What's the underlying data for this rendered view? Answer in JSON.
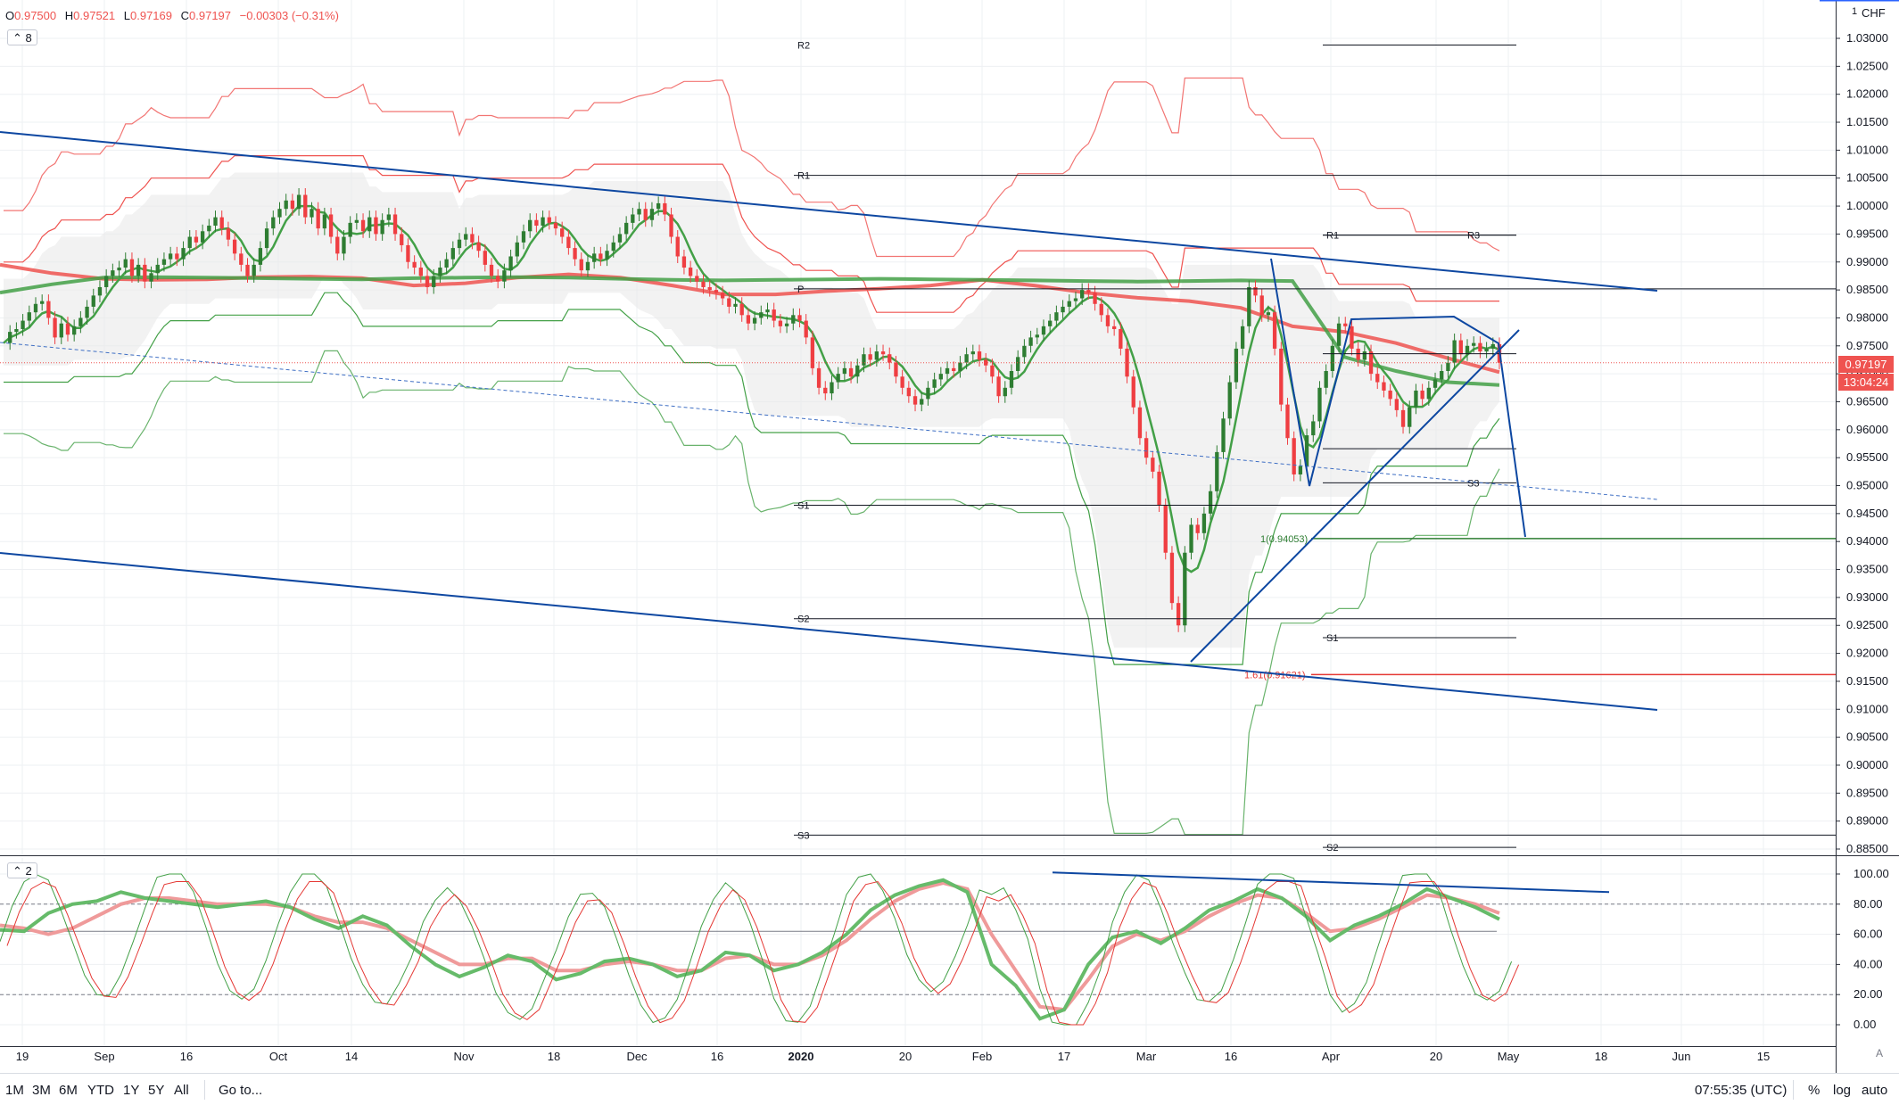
{
  "legend": {
    "open_label": "O",
    "open": "0.97500",
    "high_label": "H",
    "high": "0.97521",
    "low_label": "L",
    "low": "0.97169",
    "close_label": "C",
    "close": "0.97197",
    "change": "−0.00303 (−0.31%)",
    "main_indicators_count": "8",
    "sub_indicators_count": "2"
  },
  "currency": "CHF",
  "log_flag": "1",
  "last_price": "0.97197",
  "countdown": "13:04:24",
  "bottom_bar": {
    "ranges": [
      "1M",
      "3M",
      "6M",
      "YTD",
      "1Y",
      "5Y",
      "All"
    ],
    "goto": "Go to...",
    "clock": "07:55:35 (UTC)",
    "right_buttons": [
      "%",
      "log",
      "auto"
    ]
  },
  "colors": {
    "up": "#2e7d32",
    "down": "#ef3e42",
    "trend_blue": "#0d47a1",
    "band_red": "#ef5350",
    "band_green": "#43a047",
    "fib_red": "#e53935",
    "fib_green": "#2e7d32",
    "stoch_green": "#66bb6a",
    "stoch_red": "#ef9a9a"
  },
  "chart_data": {
    "type": "candlestick",
    "x_ticks": [
      "19",
      "Sep",
      "16",
      "Oct",
      "14",
      "Nov",
      "18",
      "Dec",
      "16",
      "2020",
      "20",
      "Feb",
      "17",
      "Mar",
      "16",
      "Apr",
      "20",
      "May",
      "18",
      "Jun",
      "15"
    ],
    "y_ticks": [
      "1.03000",
      "1.02500",
      "1.02000",
      "1.01500",
      "1.01000",
      "1.00500",
      "1.00000",
      "0.99500",
      "0.99000",
      "0.98500",
      "0.98000",
      "0.97500",
      "0.97000",
      "0.96500",
      "0.96000",
      "0.95500",
      "0.95000",
      "0.94500",
      "0.94000",
      "0.93500",
      "0.93000",
      "0.92500",
      "0.92000",
      "0.91500",
      "0.91000",
      "0.90500",
      "0.90000",
      "0.89500",
      "0.89000",
      "0.88500"
    ],
    "ylim": [
      0.8836,
      1.0355
    ],
    "pivot_levels": [
      {
        "label": "R2",
        "value": 1.0288
      },
      {
        "label": "R1",
        "value": 1.0055
      },
      {
        "label": "P",
        "value": 0.9852
      },
      {
        "label": "S1",
        "value": 0.9465
      },
      {
        "label": "S2",
        "value": 0.9262
      },
      {
        "label": "S3",
        "value": 0.8875
      },
      {
        "label": "R1",
        "value": 0.9948
      },
      {
        "label": "R3",
        "value": 0.9948
      },
      {
        "label": "",
        "value": 0.9736
      },
      {
        "label": "",
        "value": 0.9566
      },
      {
        "label": "S3",
        "value": 0.9505
      },
      {
        "label": "S1",
        "value": 0.9228
      },
      {
        "label": "S2",
        "value": 0.8853
      }
    ],
    "fib_levels": [
      {
        "label": "1(0.94053)",
        "value": 0.94053
      },
      {
        "label": "1.61(0.91621)",
        "value": 0.91621
      }
    ],
    "closes": [
      0.9755,
      0.9775,
      0.978,
      0.9795,
      0.981,
      0.9825,
      0.983,
      0.98,
      0.9765,
      0.979,
      0.977,
      0.9785,
      0.98,
      0.982,
      0.984,
      0.9855,
      0.9875,
      0.9885,
      0.989,
      0.9905,
      0.9875,
      0.9895,
      0.9865,
      0.988,
      0.9895,
      0.9905,
      0.9915,
      0.9905,
      0.9925,
      0.9945,
      0.9935,
      0.9955,
      0.9965,
      0.998,
      0.996,
      0.994,
      0.9915,
      0.9895,
      0.9875,
      0.9895,
      0.9925,
      0.996,
      0.998,
      0.9995,
      1.001,
      0.9995,
      1.002,
      0.998,
      0.9995,
      0.996,
      0.9985,
      0.9945,
      0.9915,
      0.9945,
      0.997,
      0.9975,
      0.9955,
      0.998,
      0.995,
      0.9975,
      0.9985,
      0.995,
      0.993,
      0.99,
      0.989,
      0.9875,
      0.9855,
      0.9875,
      0.989,
      0.9905,
      0.9925,
      0.994,
      0.995,
      0.9935,
      0.992,
      0.9895,
      0.9875,
      0.9865,
      0.9885,
      0.991,
      0.9935,
      0.9955,
      0.9975,
      0.9965,
      0.998,
      0.997,
      0.996,
      0.9945,
      0.9925,
      0.9905,
      0.9885,
      0.99,
      0.9915,
      0.9905,
      0.992,
      0.9935,
      0.995,
      0.997,
      0.9985,
      0.9995,
      0.9975,
      0.9995,
      1.0005,
      0.9985,
      0.9945,
      0.991,
      0.989,
      0.9875,
      0.9865,
      0.9855,
      0.985,
      0.9845,
      0.9835,
      0.982,
      0.9825,
      0.9805,
      0.979,
      0.98,
      0.981,
      0.9815,
      0.9795,
      0.9785,
      0.979,
      0.9805,
      0.9795,
      0.9765,
      0.971,
      0.9675,
      0.9665,
      0.9685,
      0.97,
      0.971,
      0.9695,
      0.9715,
      0.9735,
      0.9725,
      0.974,
      0.9735,
      0.972,
      0.9695,
      0.9675,
      0.966,
      0.9645,
      0.9655,
      0.9675,
      0.969,
      0.97,
      0.971,
      0.9705,
      0.972,
      0.9735,
      0.974,
      0.9725,
      0.9715,
      0.9695,
      0.966,
      0.9675,
      0.9705,
      0.973,
      0.975,
      0.9765,
      0.977,
      0.9785,
      0.9795,
      0.981,
      0.982,
      0.983,
      0.9835,
      0.985,
      0.9845,
      0.9825,
      0.9805,
      0.9785,
      0.978,
      0.9745,
      0.9695,
      0.964,
      0.9585,
      0.955,
      0.9525,
      0.9465,
      0.938,
      0.929,
      0.925,
      0.938,
      0.943,
      0.9415,
      0.945,
      0.949,
      0.956,
      0.962,
      0.9685,
      0.9745,
      0.9785,
      0.9855,
      0.984,
      0.9805,
      0.981,
      0.9745,
      0.9645,
      0.9585,
      0.952,
      0.9535,
      0.959,
      0.9615,
      0.9675,
      0.9705,
      0.975,
      0.979,
      0.9785,
      0.9745,
      0.9725,
      0.974,
      0.97,
      0.9685,
      0.967,
      0.9655,
      0.9635,
      0.9605,
      0.964,
      0.967,
      0.9655,
      0.9675,
      0.969,
      0.9705,
      0.972,
      0.976,
      0.9735,
      0.975,
      0.9755,
      0.974,
      0.9745,
      0.9753,
      0.97197
    ],
    "series": [
      {
        "name": "",
        "type": "sma_red",
        "values": [
          0.9895,
          0.988,
          0.987,
          0.9868,
          0.9869,
          0.9873,
          0.9874,
          0.9871,
          0.9858,
          0.9862,
          0.9872,
          0.9878,
          0.9872,
          0.9858,
          0.9842,
          0.9842,
          0.9848,
          0.9852,
          0.9858,
          0.9868,
          0.9858,
          0.9845,
          0.9836,
          0.983,
          0.9818,
          0.9785,
          0.9775,
          0.9755,
          0.9728,
          0.9703
        ]
      },
      {
        "name": "",
        "type": "sma_green",
        "values": [
          0.9845,
          0.986,
          0.9872,
          0.9873,
          0.9872,
          0.9871,
          0.987,
          0.9869,
          0.9871,
          0.9872,
          0.9873,
          0.9872,
          0.987,
          0.9868,
          0.9867,
          0.9868,
          0.9869,
          0.987,
          0.9869,
          0.9868,
          0.9867,
          0.9866,
          0.9865,
          0.9866,
          0.9867,
          0.9866,
          0.973,
          0.9705,
          0.9685,
          0.968
        ]
      },
      {
        "name": "",
        "type": "stoch_k",
        "values": [
          63,
          62,
          74,
          80,
          82,
          88,
          84,
          82,
          80,
          78,
          80,
          82,
          78,
          70,
          64,
          72,
          66,
          52,
          40,
          32,
          38,
          46,
          42,
          30,
          34,
          42,
          44,
          40,
          32,
          36,
          48,
          46,
          36,
          40,
          48,
          60,
          76,
          86,
          92,
          96,
          88,
          40,
          26,
          4,
          10,
          40,
          58,
          62,
          54,
          64,
          76,
          82,
          90,
          84,
          72,
          56,
          66,
          72,
          80,
          90,
          84,
          78,
          70
        ]
      },
      {
        "name": "",
        "type": "stoch_d",
        "values": [
          66,
          64,
          60,
          64,
          72,
          80,
          84,
          84,
          82,
          80,
          80,
          80,
          78,
          72,
          68,
          68,
          64,
          56,
          48,
          40,
          40,
          44,
          44,
          36,
          36,
          40,
          42,
          40,
          36,
          36,
          44,
          46,
          40,
          40,
          46,
          56,
          70,
          82,
          90,
          94,
          90,
          60,
          36,
          12,
          10,
          30,
          52,
          60,
          56,
          62,
          72,
          80,
          86,
          84,
          74,
          62,
          64,
          70,
          78,
          86,
          84,
          80,
          74
        ]
      }
    ],
    "oscillator_ticks": [
      "100.00",
      "80.00",
      "60.00",
      "40.00",
      "20.00",
      "0.00"
    ],
    "oscillator_ylim": [
      -3,
      105
    ]
  }
}
